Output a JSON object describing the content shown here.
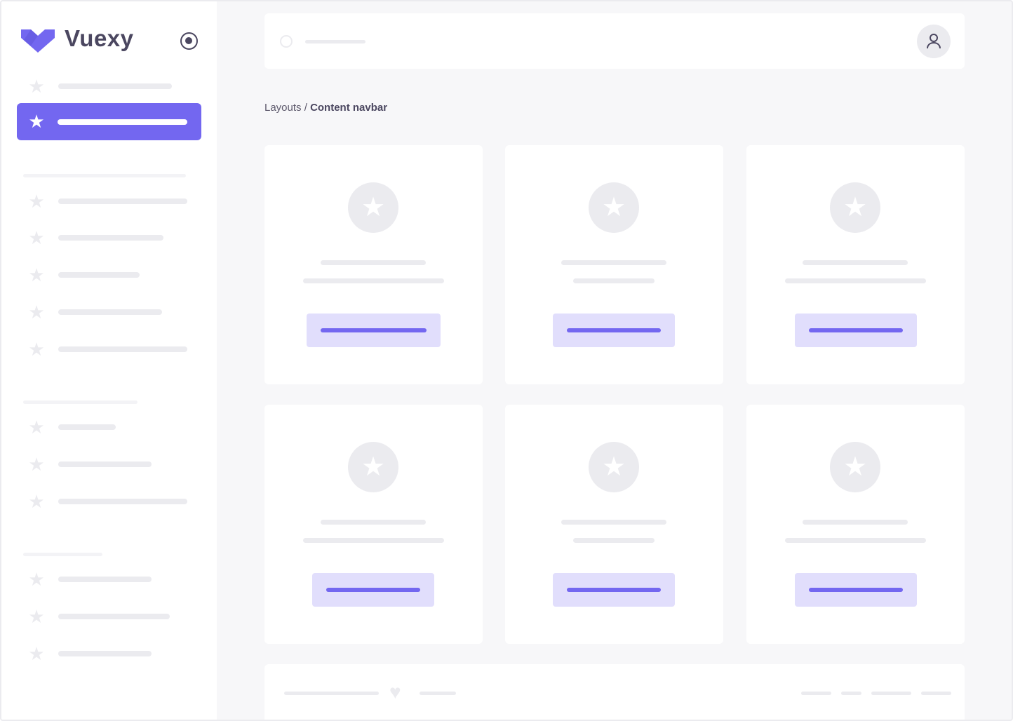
{
  "brand": {
    "name": "Vuexy",
    "color": "#7367f0"
  },
  "breadcrumb": {
    "parent": "Layouts",
    "separator": "/",
    "current": "Content navbar"
  },
  "icons": {
    "nav": "star-icon",
    "search": "search-icon",
    "user": "user-icon",
    "toggle": "radio-toggle-icon",
    "footer": "heart-icon"
  }
}
